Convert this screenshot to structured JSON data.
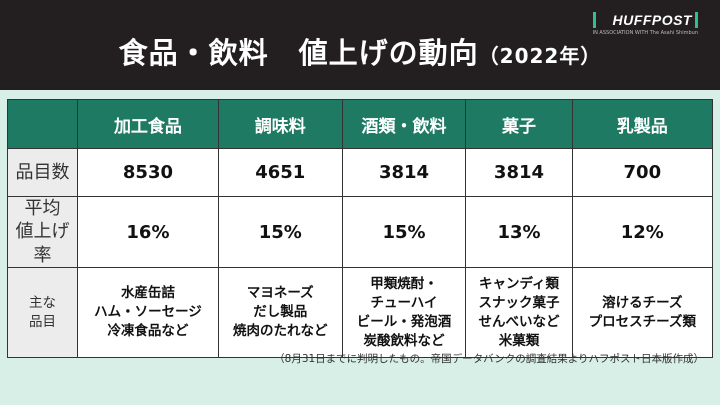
{
  "header": {
    "title": "食品・飲料　値上げの動向",
    "year": "（2022年）",
    "logo": "HUFFPOST",
    "logo_sub": "IN ASSOCIATION WITH The Asahi Shimbun"
  },
  "table": {
    "columns": [
      "加工食品",
      "調味料",
      "酒類・飲料",
      "菓子",
      "乳製品"
    ],
    "rows": [
      {
        "label": "品目数",
        "cells": [
          "8530",
          "4651",
          "3814",
          "3814",
          "700"
        ]
      },
      {
        "label": "平均\n値上げ率",
        "cells": [
          "16%",
          "15%",
          "15%",
          "13%",
          "12%"
        ]
      },
      {
        "label": "主な\n品目",
        "cells": [
          "水産缶詰\nハム・ソーセージ\n冷凍食品など",
          "マヨネーズ\nだし製品\n焼肉のたれなど",
          "甲類焼酎・\nチューハイ\nビール・発泡酒\n炭酸飲料など",
          "キャンディ類\nスナック菓子\nせんべいなど\n米菓類",
          "溶けるチーズ\nプロセスチーズ類"
        ]
      }
    ]
  },
  "footnote": "（8月31日までに判明したもの。帝国データバンクの調査結果よりハフポスト日本版作成）",
  "colors": {
    "header_bg": "#231f20",
    "table_head": "#1f7a63",
    "background": "#d8efe8"
  }
}
